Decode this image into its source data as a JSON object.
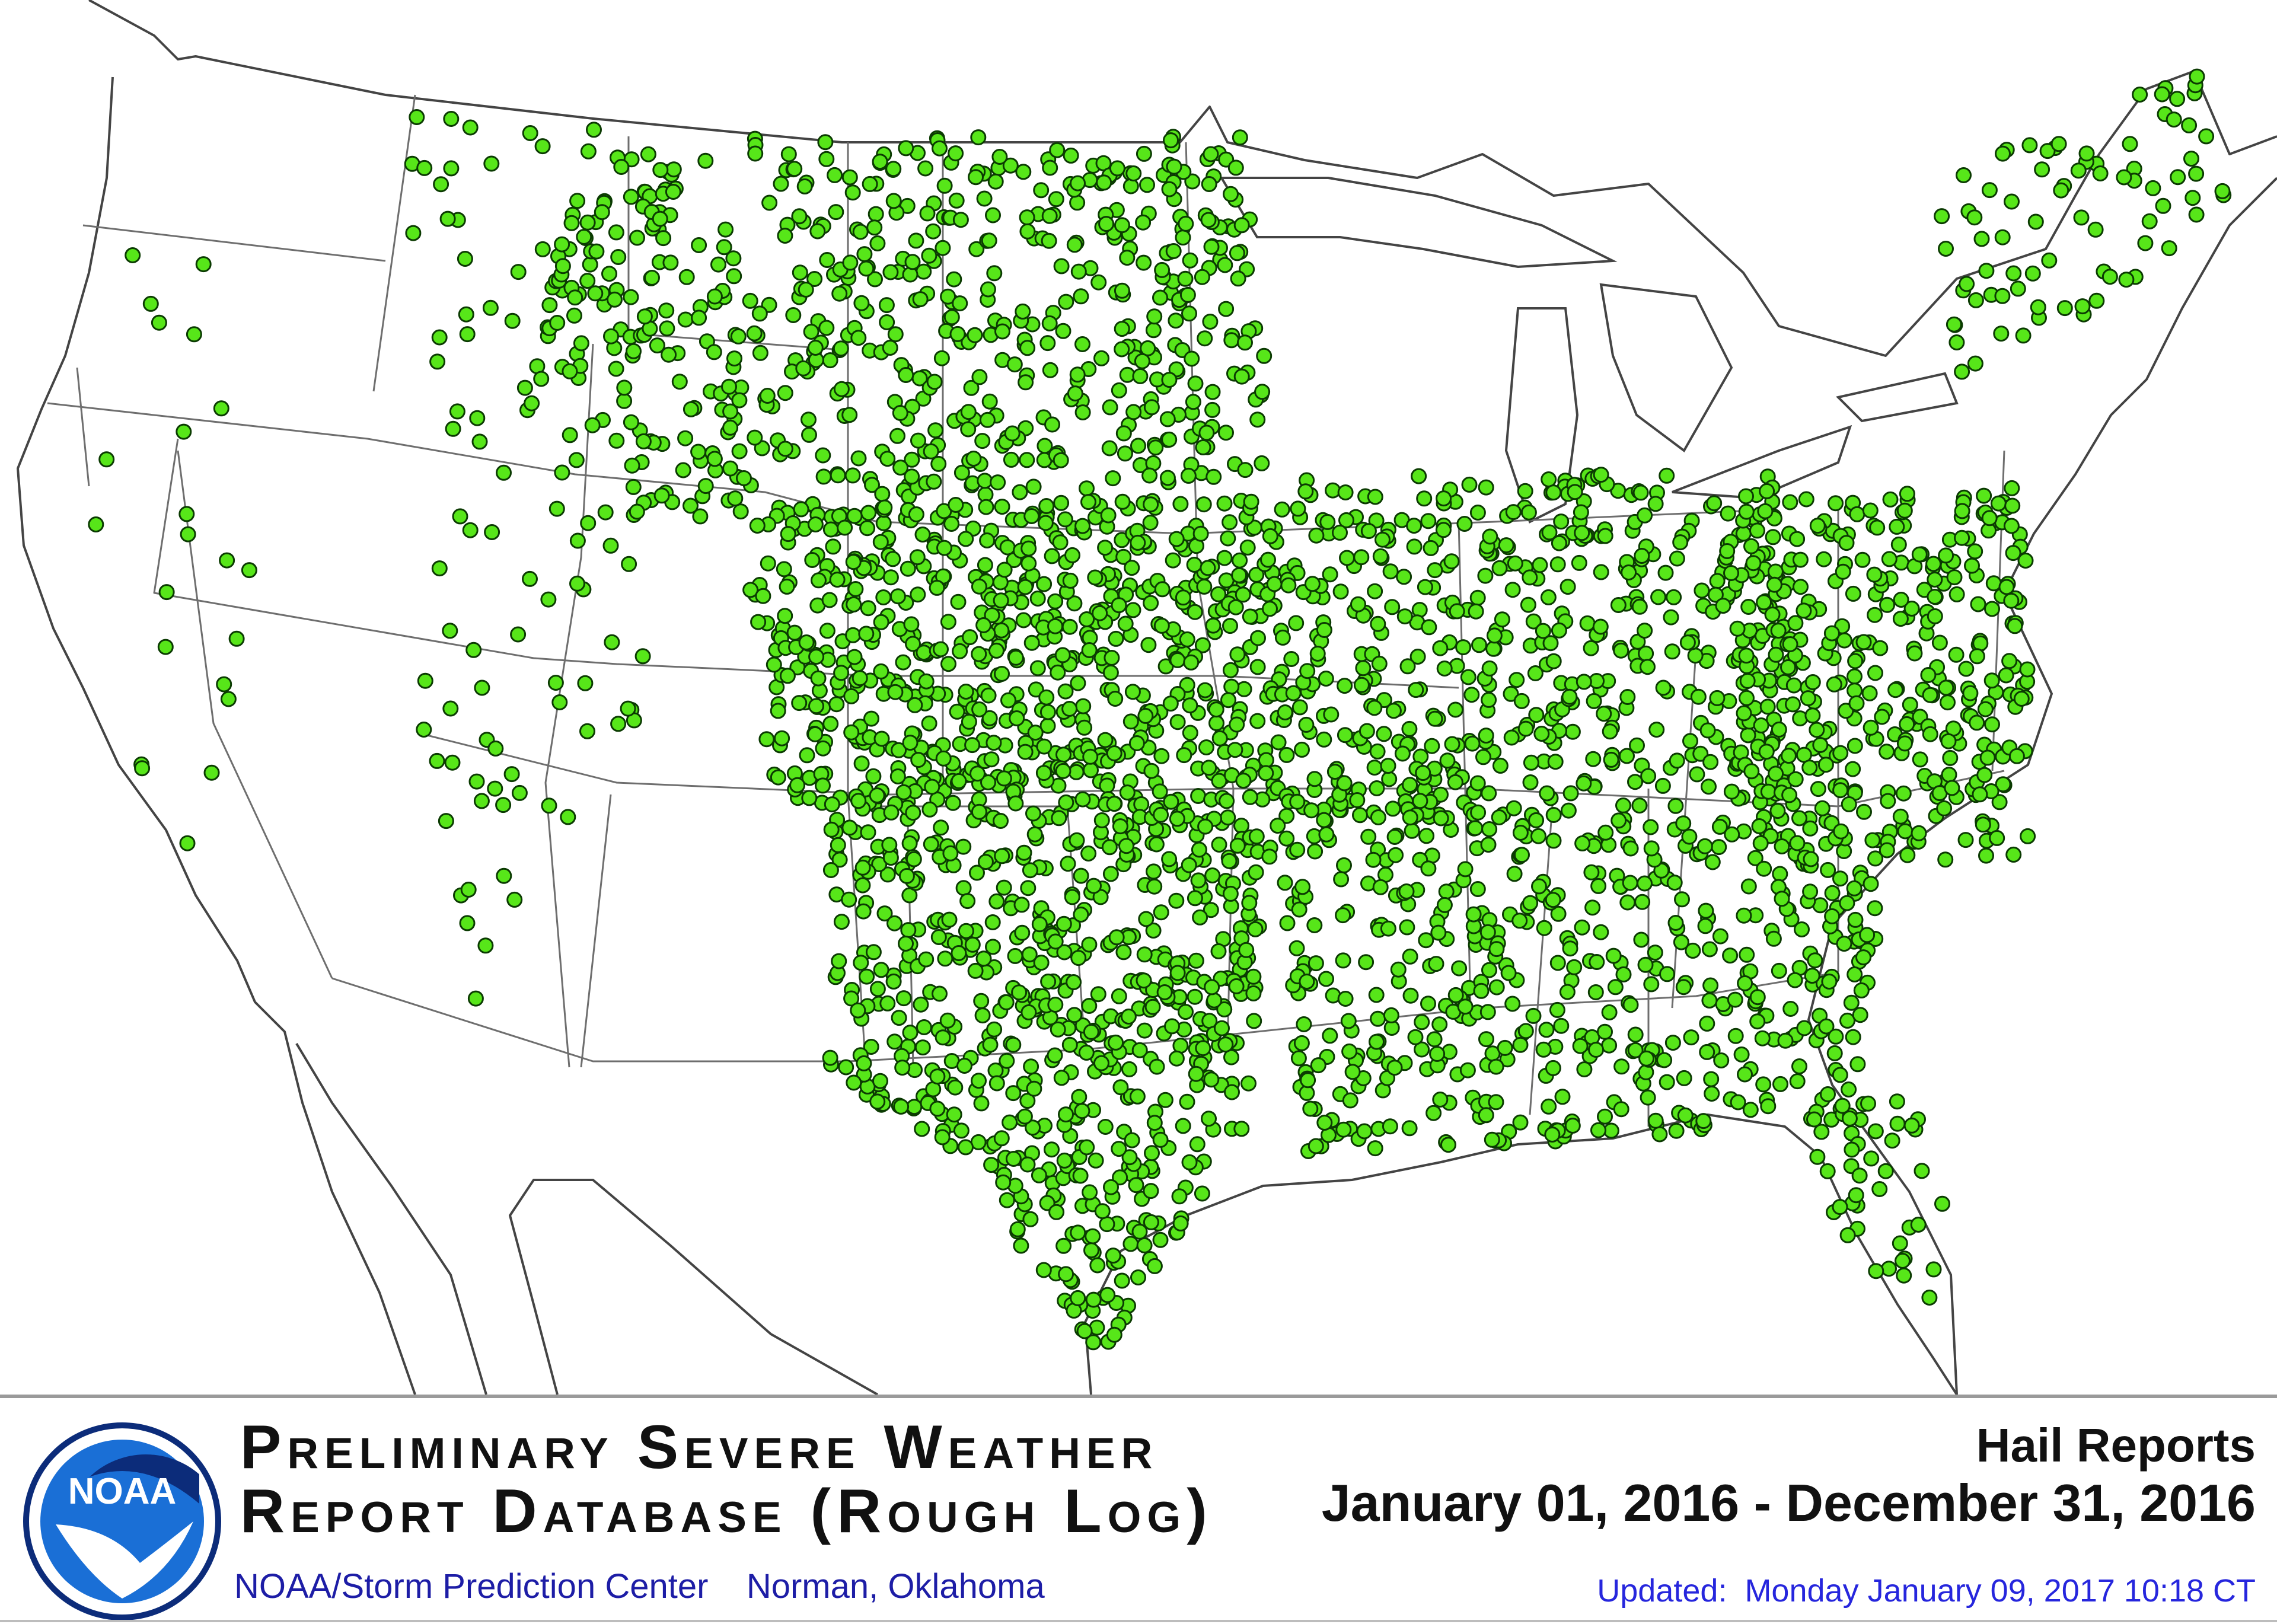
{
  "map": {
    "report_kind": "hail",
    "marker_color": "#57e619",
    "marker_outline": "#0b3b02",
    "report_clusters": [
      {
        "region": "northern-plains",
        "density": "very-high"
      },
      {
        "region": "central-plains",
        "density": "very-high"
      },
      {
        "region": "southern-plains",
        "density": "very-high"
      },
      {
        "region": "ohio-valley",
        "density": "high"
      },
      {
        "region": "mid-atlantic",
        "density": "high"
      },
      {
        "region": "southeast",
        "density": "high"
      },
      {
        "region": "mountain-west",
        "density": "low"
      },
      {
        "region": "pacific-coast",
        "density": "very-low"
      },
      {
        "region": "new-england",
        "density": "medium"
      },
      {
        "region": "florida",
        "density": "medium"
      }
    ]
  },
  "footer": {
    "database_title_line1": "Preliminary Severe Weather",
    "database_title_line2": "Report Database (Rough Log)",
    "logo_text": "NOAA",
    "credit": "NOAA/Storm Prediction Center    Norman, Oklahoma",
    "report_type": "Hail Reports",
    "date_range": "January 01, 2016 - December 31, 2016",
    "updated": "Updated:  Monday January 09, 2017 10:18 CT"
  },
  "colors": {
    "title_text": "#111111",
    "credit_text": "#1d1da6",
    "updated_text": "#2626dd",
    "logo_blue": "#1a6fd6",
    "logo_dark": "#0c2c7a"
  }
}
